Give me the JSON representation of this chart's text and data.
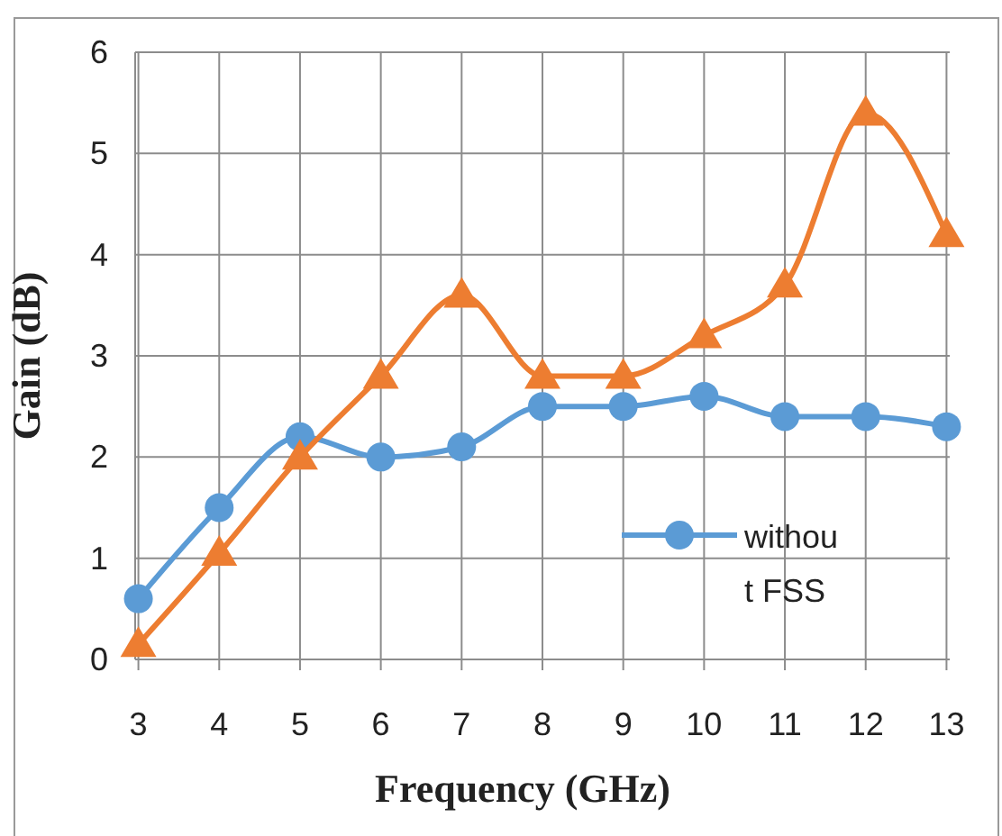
{
  "chart_data": {
    "type": "line",
    "xlabel": "Frequency (GHz)",
    "ylabel": "Gain (dB)",
    "categories": [
      "3",
      "4",
      "5",
      "6",
      "7",
      "8",
      "9",
      "10",
      "11",
      "12",
      "13"
    ],
    "series": [
      {
        "name": "without FSS",
        "color": "#5b9bd5",
        "marker": "circle",
        "values": [
          0.6,
          1.5,
          2.2,
          2.0,
          2.1,
          2.5,
          2.5,
          2.6,
          2.4,
          2.4,
          2.3
        ]
      },
      {
        "color": "#ed7d31",
        "marker": "triangle",
        "values": [
          0.15,
          1.05,
          2.0,
          2.8,
          3.6,
          2.8,
          2.8,
          3.2,
          3.7,
          5.4,
          4.2
        ]
      }
    ],
    "ylim": [
      0,
      6
    ],
    "yticks": [
      0,
      1,
      2,
      3,
      4,
      5,
      6
    ],
    "grid": true,
    "legend": "bottom right"
  }
}
